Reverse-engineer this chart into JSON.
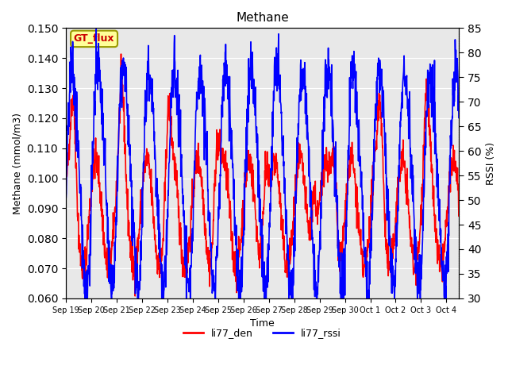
{
  "title": "Methane",
  "xlabel": "Time",
  "ylabel_left": "Methane (mmol/m3)",
  "ylabel_right": "RSSI (%)",
  "ylim_left": [
    0.06,
    0.15
  ],
  "ylim_right": [
    30,
    85
  ],
  "yticks_left": [
    0.06,
    0.07,
    0.08,
    0.09,
    0.1,
    0.11,
    0.12,
    0.13,
    0.14,
    0.15
  ],
  "yticks_right": [
    30,
    35,
    40,
    45,
    50,
    55,
    60,
    65,
    70,
    75,
    80,
    85
  ],
  "color_den": "#ff0000",
  "color_rssi": "#0000ff",
  "legend_labels": [
    "li77_den",
    "li77_rssi"
  ],
  "gt_flux_box_color": "#ffff99",
  "gt_flux_border_color": "#999900",
  "gt_flux_text_color": "#cc0000",
  "background_color": "#ffffff",
  "plot_bg_color": "#e8e8e8",
  "grid_color": "#ffffff",
  "linewidth": 1.2,
  "x_tick_labels": [
    "Sep 19",
    "Sep 20",
    "Sep 21",
    "Sep 22",
    "Sep 23",
    "Sep 24",
    "Sep 25",
    "Sep 26",
    "Sep 27",
    "Sep 28",
    "Sep 29",
    "Sep 30",
    "Oct 1",
    "Oct 2",
    "Oct 3",
    "Oct 4"
  ]
}
